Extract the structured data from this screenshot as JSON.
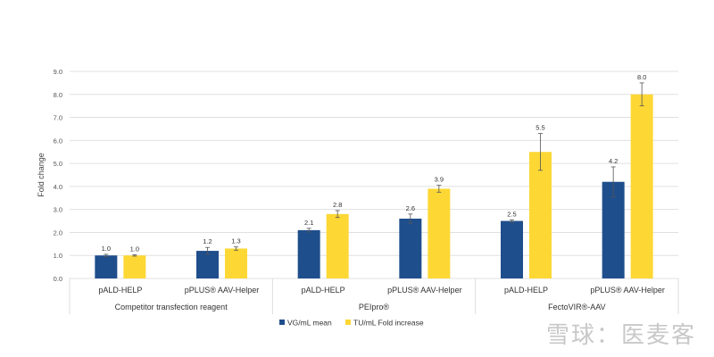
{
  "chart_data": {
    "type": "bar",
    "title": "",
    "ylabel": "Fold change",
    "ylim": [
      0,
      9
    ],
    "yticks": [
      "0.0",
      "1.0",
      "2.0",
      "3.0",
      "4.0",
      "5.0",
      "6.0",
      "7.0",
      "8.0",
      "9.0"
    ],
    "grid": true,
    "legend_placement": "bottom",
    "groups": [
      {
        "label": "Competitor transfection reagent",
        "categories": [
          "pALD-HELP",
          "pPLUS® AAV-Helper"
        ]
      },
      {
        "label": "PEIpro®",
        "categories": [
          "pALD-HELP",
          "pPLUS® AAV-Helper"
        ]
      },
      {
        "label": "FectoVIR®-AAV",
        "categories": [
          "pALD-HELP",
          "pPLUS® AAV-Helper"
        ]
      }
    ],
    "series": [
      {
        "name": "VG/mL mean",
        "color": "#1f4e8c",
        "values": [
          1.0,
          1.2,
          2.1,
          2.6,
          2.5,
          4.2
        ],
        "labels": [
          "1.0",
          "1.2",
          "2.1",
          "2.6",
          "2.5",
          "4.2"
        ],
        "errors": [
          0.05,
          0.15,
          0.08,
          0.2,
          0.05,
          0.65
        ]
      },
      {
        "name": "TU/mL Fold increase",
        "color": "#fdd835",
        "values": [
          1.0,
          1.3,
          2.8,
          3.9,
          5.5,
          8.0
        ],
        "labels": [
          "1.0",
          "1.3",
          "2.8",
          "3.9",
          "5.5",
          "8.0"
        ],
        "errors": [
          0.03,
          0.07,
          0.15,
          0.15,
          0.8,
          0.5
        ]
      }
    ]
  },
  "watermark": "雪球：医麦客"
}
